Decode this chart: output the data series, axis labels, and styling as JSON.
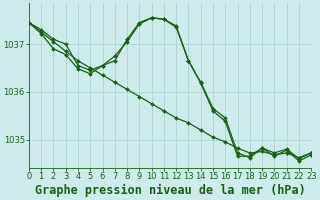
{
  "title": "Graphe pression niveau de la mer (hPa)",
  "bg_color": "#ceeaea",
  "grid_color": "#a8cccc",
  "line_color": "#1a5e1a",
  "xlim": [
    0,
    23
  ],
  "ylim": [
    1034.4,
    1037.85
  ],
  "yticks": [
    1035,
    1036,
    1037
  ],
  "xticks": [
    0,
    1,
    2,
    3,
    4,
    5,
    6,
    7,
    8,
    9,
    10,
    11,
    12,
    13,
    14,
    15,
    16,
    17,
    18,
    19,
    20,
    21,
    22,
    23
  ],
  "series1_x": [
    0,
    1,
    2,
    3,
    4,
    5,
    6,
    7,
    8,
    9,
    10,
    11,
    12,
    13,
    14,
    15,
    16,
    17,
    18,
    19,
    20,
    21,
    22,
    23
  ],
  "series1_y": [
    1037.45,
    1037.25,
    1037.05,
    1036.85,
    1036.65,
    1036.5,
    1036.35,
    1036.2,
    1036.05,
    1035.9,
    1035.75,
    1035.6,
    1035.45,
    1035.35,
    1035.2,
    1035.05,
    1034.95,
    1034.82,
    1034.72,
    1034.75,
    1034.68,
    1034.72,
    1034.62,
    1034.72
  ],
  "series2_x": [
    0,
    1,
    2,
    3,
    4,
    5,
    6,
    7,
    8,
    9,
    10,
    11,
    12,
    13,
    14,
    15,
    16,
    17,
    18,
    19,
    20,
    21,
    22,
    23
  ],
  "series2_y": [
    1037.45,
    1037.3,
    1037.1,
    1037.0,
    1036.55,
    1036.45,
    1036.55,
    1036.75,
    1037.05,
    1037.42,
    1037.55,
    1037.52,
    1037.35,
    1036.65,
    1036.2,
    1035.65,
    1035.45,
    1034.72,
    1034.62,
    1034.82,
    1034.72,
    1034.8,
    1034.6,
    1034.72
  ],
  "series3_x": [
    0,
    1,
    2,
    3,
    4,
    5,
    6,
    7,
    8,
    9,
    10,
    11,
    12,
    13,
    14,
    15,
    16,
    17,
    18,
    19,
    20,
    21,
    22,
    23
  ],
  "series3_y": [
    1037.45,
    1037.22,
    1036.9,
    1036.78,
    1036.48,
    1036.38,
    1036.55,
    1036.65,
    1037.1,
    1037.45,
    1037.55,
    1037.52,
    1037.38,
    1036.65,
    1036.18,
    1035.6,
    1035.38,
    1034.65,
    1034.65,
    1034.82,
    1034.65,
    1034.78,
    1034.55,
    1034.68
  ],
  "marker_size": 2.0,
  "linewidth": 0.9,
  "title_fontsize": 8.5,
  "tick_fontsize": 6.0,
  "title_color": "#1a5e1a",
  "axis_color": "#1a5e1a"
}
